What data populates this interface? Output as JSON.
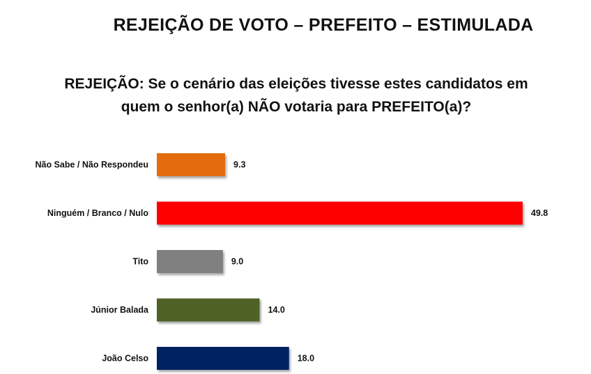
{
  "header": {
    "title": "REJEIÇÃO DE VOTO – PREFEITO – ESTIMULADA",
    "question_line1": "REJEIÇÃO: Se o cenário das eleições tivesse estes candidatos em",
    "question_line2": "quem o senhor(a) NÃO votaria para PREFEITO(a)?"
  },
  "chart_data": {
    "type": "bar",
    "orientation": "horizontal",
    "categories": [
      "Não Sabe / Não Respondeu",
      "Ninguém / Branco / Nulo",
      "Tito",
      "Júnior Balada",
      "João Celso"
    ],
    "values": [
      9.3,
      49.8,
      9.0,
      14.0,
      18.0
    ],
    "value_labels": [
      "9.3",
      "49.8",
      "9.0",
      "14.0",
      "18.0"
    ],
    "colors": [
      "#E46C0A",
      "#FF0000",
      "#808080",
      "#4F6228",
      "#002060"
    ],
    "xlim": [
      0,
      50
    ],
    "grid": false,
    "legend": "none"
  }
}
